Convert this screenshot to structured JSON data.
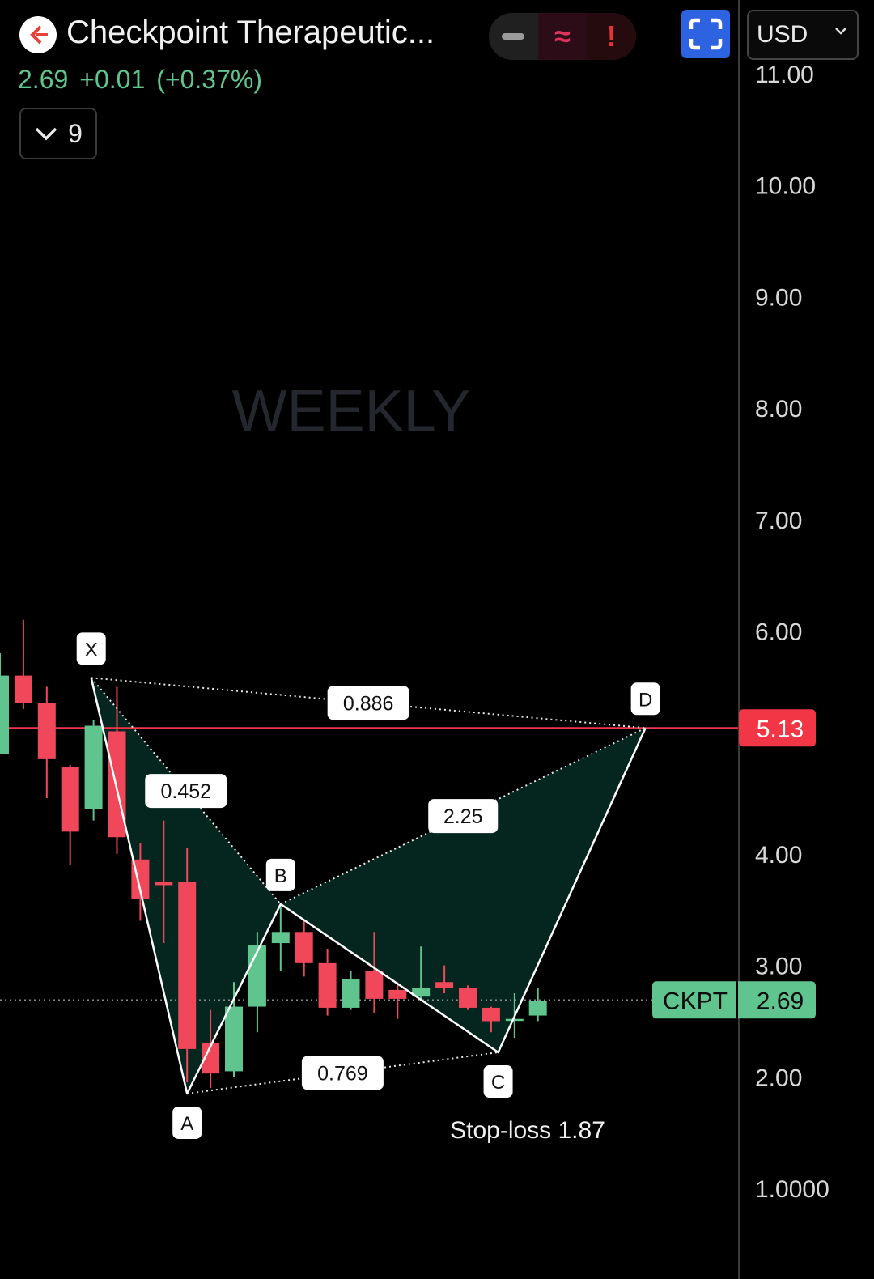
{
  "header": {
    "title": "Checkpoint Therapeutic...",
    "price": "2.69",
    "change": "+0.01",
    "change_pct": "(+0.37%)",
    "indicator_count": "9",
    "currency": "USD",
    "status_icons": [
      "minus-icon",
      "approx-icon",
      "exclamation-icon"
    ]
  },
  "colors": {
    "up": "#5fc48e",
    "down": "#f0485a",
    "pattern_fill": "#05261f",
    "stop_line": "#f23645",
    "fullscreen": "#2d63e0"
  },
  "chart_data": {
    "type": "candlestick",
    "watermark": "WEEKLY",
    "symbol": "CKPT",
    "last_price": 2.69,
    "stop_price_label": "5.13",
    "stop_price": 5.13,
    "stop_loss_text": "Stop-loss 1.87",
    "y_axis": {
      "ticks": [
        11,
        10,
        9,
        8,
        7,
        6,
        4,
        3,
        2,
        1
      ],
      "tick_labels": [
        "11.00",
        "10.00",
        "9.00",
        "8.00",
        "7.00",
        "6.00",
        "4.00",
        "3.00",
        "2.00",
        "1.0000"
      ],
      "range": [
        0.3,
        11.6
      ]
    },
    "candles": [
      {
        "o": 4.9,
        "h": 5.8,
        "l": 4.9,
        "c": 5.6
      },
      {
        "o": 5.6,
        "h": 6.1,
        "l": 5.3,
        "c": 5.35
      },
      {
        "o": 5.35,
        "h": 5.5,
        "l": 4.5,
        "c": 4.85
      },
      {
        "o": 4.78,
        "h": 4.8,
        "l": 3.9,
        "c": 4.2
      },
      {
        "o": 4.4,
        "h": 5.2,
        "l": 4.3,
        "c": 5.15
      },
      {
        "o": 5.1,
        "h": 5.5,
        "l": 4.0,
        "c": 4.15
      },
      {
        "o": 3.95,
        "h": 4.1,
        "l": 3.4,
        "c": 3.6
      },
      {
        "o": 3.75,
        "h": 4.3,
        "l": 3.2,
        "c": 3.72
      },
      {
        "o": 3.75,
        "h": 4.05,
        "l": 1.95,
        "c": 2.25
      },
      {
        "o": 2.3,
        "h": 2.6,
        "l": 1.9,
        "c": 2.03
      },
      {
        "o": 2.05,
        "h": 2.85,
        "l": 2.0,
        "c": 2.63
      },
      {
        "o": 2.63,
        "h": 3.3,
        "l": 2.4,
        "c": 3.18
      },
      {
        "o": 3.2,
        "h": 3.55,
        "l": 2.95,
        "c": 3.3
      },
      {
        "o": 3.3,
        "h": 3.4,
        "l": 2.9,
        "c": 3.02
      },
      {
        "o": 3.02,
        "h": 3.15,
        "l": 2.55,
        "c": 2.62
      },
      {
        "o": 2.62,
        "h": 2.95,
        "l": 2.6,
        "c": 2.88
      },
      {
        "o": 2.95,
        "h": 3.3,
        "l": 2.57,
        "c": 2.7
      },
      {
        "o": 2.78,
        "h": 2.85,
        "l": 2.52,
        "c": 2.7
      },
      {
        "o": 2.72,
        "h": 3.17,
        "l": 2.68,
        "c": 2.8
      },
      {
        "o": 2.85,
        "h": 3.0,
        "l": 2.75,
        "c": 2.8
      },
      {
        "o": 2.8,
        "h": 2.82,
        "l": 2.6,
        "c": 2.62
      },
      {
        "o": 2.62,
        "h": 2.63,
        "l": 2.4,
        "c": 2.5
      },
      {
        "o": 2.51,
        "h": 2.75,
        "l": 2.35,
        "c": 2.52
      },
      {
        "o": 2.55,
        "h": 2.8,
        "l": 2.5,
        "c": 2.68
      }
    ],
    "pattern": {
      "points": [
        {
          "label": "X",
          "bar": 3.9,
          "price": 5.58
        },
        {
          "label": "A",
          "bar": 8.0,
          "price": 1.85
        },
        {
          "label": "B",
          "bar": 12.0,
          "price": 3.55
        },
        {
          "label": "C",
          "bar": 21.3,
          "price": 2.22
        },
        {
          "label": "D",
          "bar": 27.6,
          "price": 5.13
        }
      ],
      "ratios": [
        {
          "label": "0.452",
          "from": 0,
          "to": 2
        },
        {
          "label": "0.886",
          "from": 0,
          "to": 4
        },
        {
          "label": "0.769",
          "from": 1,
          "to": 3
        },
        {
          "label": "2.25",
          "from": 2,
          "to": 4
        }
      ]
    }
  }
}
